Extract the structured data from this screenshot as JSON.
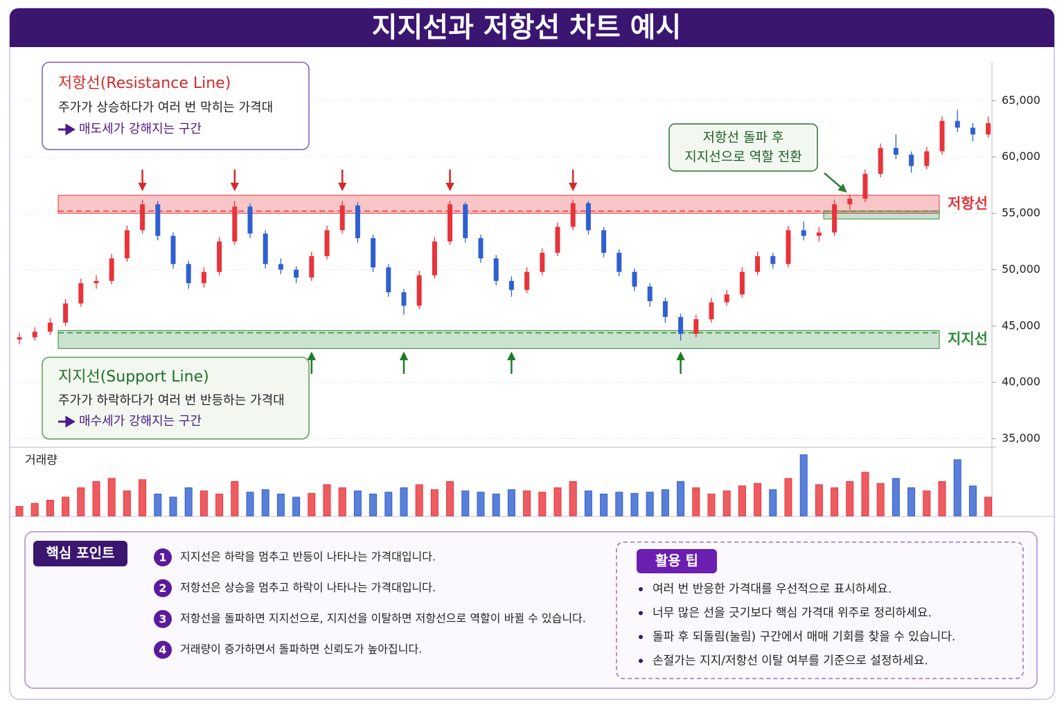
{
  "title": "지지선과 저항선 차트 예시",
  "chart_data": {
    "type": "candlestick",
    "ylim": [
      34300,
      68400
    ],
    "yticks": [
      {
        "value": 35000,
        "label": "35,000"
      },
      {
        "value": 40000,
        "label": "40,000"
      },
      {
        "value": 45000,
        "label": "45,000"
      },
      {
        "value": 50000,
        "label": "50,000"
      },
      {
        "value": 55000,
        "label": "55,000"
      },
      {
        "value": 60000,
        "label": "60,000"
      },
      {
        "value": 65000,
        "label": "65,000"
      }
    ],
    "grid": true,
    "up_color": "#e8333a",
    "down_color": "#2f5fd0",
    "open": [
      43800,
      44000,
      44500,
      45300,
      47000,
      48800,
      49000,
      51000,
      53500,
      55800,
      53000,
      50500,
      48800,
      49800,
      52500,
      55600,
      53200,
      50500,
      50000,
      49300,
      51200,
      53500,
      55700,
      52800,
      50200,
      48000,
      46800,
      49500,
      52500,
      55800,
      52800,
      51000,
      49000,
      48200,
      49800,
      51500,
      53800,
      55900,
      53500,
      51500,
      49800,
      48500,
      47200,
      45800,
      44300,
      45600,
      47100,
      47800,
      49800,
      51200,
      50500,
      53500,
      53000,
      53300,
      55800,
      56300,
      58500,
      60800,
      60200,
      59200,
      60500,
      63200,
      62600,
      62000
    ],
    "high": [
      44400,
      44900,
      45700,
      47400,
      49200,
      49500,
      51400,
      53900,
      56200,
      56100,
      53300,
      50800,
      50200,
      52900,
      56100,
      55900,
      53500,
      51000,
      50300,
      51600,
      53900,
      56100,
      56000,
      53100,
      50500,
      48300,
      49900,
      52900,
      56100,
      56000,
      53100,
      51300,
      49400,
      50200,
      51900,
      54200,
      56200,
      56100,
      53800,
      51800,
      50100,
      48800,
      47500,
      46100,
      46000,
      47500,
      48200,
      50200,
      51600,
      51500,
      53900,
      54300,
      53800,
      56200,
      56700,
      58900,
      61200,
      62000,
      60500,
      60900,
      63600,
      64200,
      63000,
      63600
    ],
    "low": [
      43400,
      43700,
      44200,
      45000,
      46700,
      48300,
      48700,
      50700,
      53200,
      52600,
      50100,
      48300,
      48400,
      49500,
      52200,
      52800,
      50100,
      49600,
      48800,
      49000,
      50900,
      53200,
      52400,
      49800,
      47600,
      46000,
      46500,
      49200,
      52200,
      52400,
      50600,
      48600,
      47600,
      47900,
      49500,
      51200,
      53500,
      53100,
      51100,
      49400,
      48100,
      46700,
      45300,
      43700,
      44000,
      45300,
      46800,
      47500,
      49500,
      50100,
      50200,
      52600,
      52500,
      53000,
      55300,
      56000,
      58200,
      59800,
      58600,
      58900,
      60200,
      62200,
      61400,
      61700
    ],
    "close": [
      44000,
      44500,
      45300,
      47000,
      48800,
      49000,
      51000,
      53500,
      55800,
      53000,
      50500,
      48800,
      49800,
      52500,
      55600,
      53200,
      50500,
      50000,
      49300,
      51200,
      53500,
      55700,
      52800,
      50200,
      48000,
      46800,
      49500,
      52500,
      55800,
      52800,
      51000,
      49000,
      48200,
      49800,
      51500,
      53800,
      55900,
      53500,
      51500,
      49800,
      48500,
      47200,
      45800,
      44300,
      45600,
      47100,
      47800,
      49800,
      51200,
      50500,
      53500,
      53000,
      53300,
      55800,
      56300,
      58500,
      60800,
      60200,
      59200,
      60500,
      63200,
      62600,
      62000,
      63000
    ],
    "volume": {
      "label": "거래량",
      "ylim": [
        0,
        100
      ],
      "values": [
        15,
        20,
        25,
        30,
        45,
        55,
        60,
        40,
        58,
        35,
        30,
        45,
        40,
        35,
        55,
        38,
        42,
        35,
        30,
        36,
        50,
        45,
        40,
        35,
        38,
        45,
        50,
        42,
        55,
        40,
        38,
        35,
        42,
        40,
        38,
        45,
        55,
        40,
        35,
        38,
        36,
        38,
        42,
        55,
        45,
        35,
        40,
        48,
        52,
        42,
        60,
        98,
        50,
        45,
        55,
        70,
        52,
        60,
        45,
        40,
        55,
        90,
        48,
        30
      ]
    },
    "resistance": {
      "label": "저항선",
      "band": [
        55000,
        56600
      ],
      "line": 55200,
      "color": "#e8333a"
    },
    "support": {
      "label": "지지선",
      "band": [
        43000,
        44600
      ],
      "line": 44400,
      "color": "#2e8b3a"
    }
  },
  "callouts": {
    "resistance": {
      "title": "저항선(Resistance Line)",
      "text": "주가가 상승하다가 여러 번 막히는 가격대",
      "note": "매도세가 강해지는 구간"
    },
    "support": {
      "title": "지지선(Support Line)",
      "text": "주가가 하락하다가 여러 번 반등하는 가격대",
      "note": "매수세가 강해지는 구간"
    },
    "breakout": {
      "lines": [
        "저항선 돌파 후",
        "지지선으로 역할 전환"
      ]
    }
  },
  "key_points": {
    "title": "핵심 포인트",
    "items": [
      {
        "number": 1,
        "text": "지지선은 하락을 멈추고 반등이 나타나는 가격대입니다."
      },
      {
        "number": 2,
        "text": "저항선은 상승을 멈추고 하락이 나타나는 가격대입니다."
      },
      {
        "number": 3,
        "text": "저항선을 돌파하면 지지선으로, 지지선을 이탈하면 저항선으로 역할이 바뀔 수 있습니다."
      },
      {
        "number": 4,
        "text": "거래량이 증가하면서 돌파하면 신뢰도가 높아집니다."
      }
    ]
  },
  "tips": {
    "title": "활용 팁",
    "items": [
      "여러 번 반응한 가격대를 우선적으로 표시하세요.",
      "너무 많은 선을 긋기보다 핵심 가격대 위주로 정리하세요.",
      "돌파 후 되돌림(눌림) 구간에서 매매 기회를 찾을 수 있습니다.",
      "손절가는 지지/저항선 이탈 여부를 기준으로 설정하세요."
    ]
  }
}
